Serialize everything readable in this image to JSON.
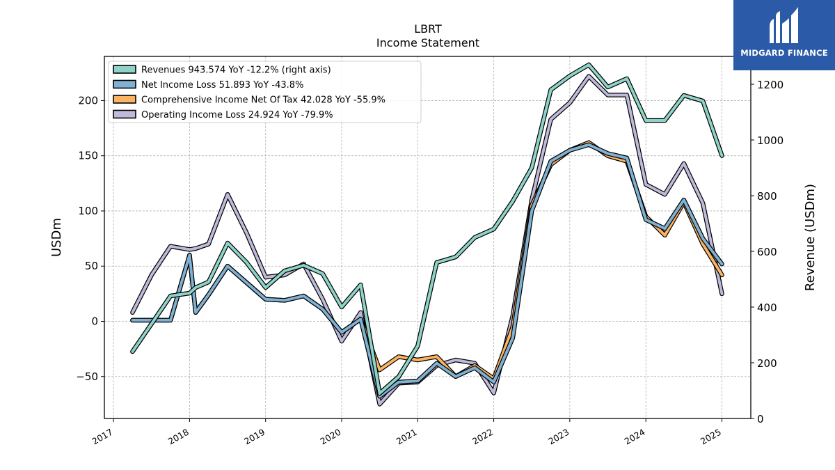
{
  "chart_data": {
    "type": "line",
    "title": "LBRT",
    "subtitle": "Income Statement",
    "ylabel": "USDm",
    "ylabel_right": "Revenue (USDm)",
    "ylim": [
      -88,
      240
    ],
    "ylim_right": [
      0,
      1300
    ],
    "yticks": [
      -50,
      0,
      50,
      100,
      150,
      200
    ],
    "yticks_right": [
      0,
      200,
      400,
      600,
      800,
      1000,
      1200
    ],
    "xlim": [
      2016.88,
      2025.38
    ],
    "xticks": [
      2017,
      2018,
      2019,
      2020,
      2021,
      2022,
      2023,
      2024,
      2025
    ],
    "x": [
      2017.25,
      2017.5,
      2017.75,
      2018.0,
      2018.08,
      2018.25,
      2018.5,
      2018.75,
      2019.0,
      2019.25,
      2019.5,
      2019.75,
      2020.0,
      2020.25,
      2020.5,
      2020.75,
      2021.0,
      2021.25,
      2021.5,
      2021.75,
      2022.0,
      2022.25,
      2022.5,
      2022.75,
      2023.0,
      2023.25,
      2023.5,
      2023.75,
      2024.0,
      2024.25,
      2024.5,
      2024.75,
      2025.0
    ],
    "grid": true,
    "legend_position": "top-left",
    "series": [
      {
        "name": "Revenues",
        "legend": "Revenues  943.574 YoY -12.2% (right axis)",
        "axis": "right",
        "color": "#8dd3c7",
        "values": [
          240,
          340,
          440,
          450,
          470,
          490,
          630,
          560,
          470,
          530,
          550,
          520,
          400,
          480,
          90,
          150,
          260,
          560,
          580,
          650,
          680,
          780,
          900,
          1180,
          1230,
          1270,
          1190,
          1220,
          1070,
          1070,
          1160,
          1140,
          943.574
        ]
      },
      {
        "name": "Net Income Loss",
        "legend": "Net Income Loss  51.893 YoY -43.8%",
        "axis": "left",
        "color": "#80b1d3",
        "values": [
          1,
          1,
          1,
          60,
          8,
          24,
          50,
          35,
          20,
          19,
          23,
          11,
          -10,
          2,
          -68,
          -55,
          -54,
          -38,
          -50,
          -42,
          -55,
          -15,
          100,
          145,
          155,
          160,
          152,
          148,
          92,
          84,
          110,
          75,
          51.893
        ]
      },
      {
        "name": "Comprehensive Income Net Of Tax",
        "legend": "Comprehensive Income Net Of Tax  42.028 YoY -55.9%",
        "axis": "left",
        "color": "#fdb462",
        "values": [
          1,
          1,
          1,
          60,
          8,
          24,
          50,
          35,
          20,
          19,
          23,
          11,
          -10,
          2,
          -44,
          -32,
          -35,
          -32,
          -50,
          -40,
          -52,
          -5,
          105,
          142,
          155,
          162,
          150,
          145,
          95,
          78,
          108,
          70,
          42.028
        ]
      },
      {
        "name": "Operating Income Loss",
        "legend": "Operating Income Loss  24.924 YoY -79.9%",
        "axis": "left",
        "color": "#bebada",
        "values": [
          8,
          42,
          68,
          65,
          66,
          70,
          115,
          80,
          40,
          42,
          52,
          20,
          -18,
          8,
          -75,
          -56,
          -55,
          -40,
          -35,
          -38,
          -65,
          5,
          110,
          183,
          198,
          222,
          205,
          205,
          124,
          115,
          143,
          107,
          24.924
        ]
      }
    ]
  }
}
